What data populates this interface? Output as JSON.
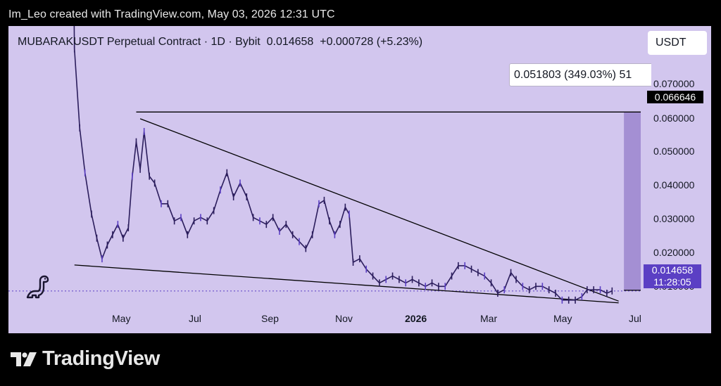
{
  "caption": "Im_Leo created with TradingView.com, May 03, 2026 12:31 UTC",
  "header": {
    "symbol": "MUBARAKUSDT Perpetual Contract · 1D · Bybit",
    "price": "0.014658",
    "change": "+0.000728 (+5.23%)"
  },
  "currency_button": "USDT",
  "tooltip": "0.051803 (349.03%) 51",
  "price_axis": {
    "labels": [
      "0.070000",
      "0.060000",
      "0.050000",
      "0.040000",
      "0.030000",
      "0.020000",
      "0.010000"
    ],
    "target_label": "0.066646",
    "current_price_label": "0.014658",
    "countdown": "11:28:05"
  },
  "time_axis": {
    "labels": [
      "May",
      "Jul",
      "Sep",
      "Nov",
      "2026",
      "Mar",
      "May",
      "Jul"
    ],
    "bold_label": "2026"
  },
  "footer": {
    "brand": "TradingView"
  },
  "colors": {
    "chart_bg": "#d2c6ee",
    "candle": "#2b1d5c",
    "candle_accent": "#5b3fc4",
    "projection_fill": "#a48fd3",
    "page_bg": "#000000"
  },
  "chart_data": {
    "type": "line",
    "title": "MUBARAKUSDT Perpetual Contract · 1D · Bybit",
    "ylim": [
      0.004,
      0.09
    ],
    "yticks": [
      0.07,
      0.06,
      0.05,
      0.04,
      0.03,
      0.02,
      0.01
    ],
    "x_start": "2025-03-18",
    "x_end": "2026-07-12",
    "series": [
      {
        "values": [
          [
            "2025-03-18",
            0.16
          ],
          [
            "2025-03-20",
            0.085
          ],
          [
            "2025-03-24",
            0.062
          ],
          [
            "2025-03-28",
            0.049
          ],
          [
            "2025-04-02",
            0.037
          ],
          [
            "2025-04-06",
            0.03
          ],
          [
            "2025-04-10",
            0.024
          ],
          [
            "2025-04-14",
            0.028
          ],
          [
            "2025-04-18",
            0.031
          ],
          [
            "2025-04-22",
            0.034
          ],
          [
            "2025-04-26",
            0.03
          ],
          [
            "2025-04-30",
            0.033
          ],
          [
            "2025-05-03",
            0.048
          ],
          [
            "2025-05-06",
            0.058
          ],
          [
            "2025-05-09",
            0.05
          ],
          [
            "2025-05-12",
            0.061
          ],
          [
            "2025-05-16",
            0.048
          ],
          [
            "2025-05-20",
            0.046
          ],
          [
            "2025-05-25",
            0.04
          ],
          [
            "2025-05-30",
            0.04
          ],
          [
            "2025-06-04",
            0.035
          ],
          [
            "2025-06-09",
            0.036
          ],
          [
            "2025-06-14",
            0.031
          ],
          [
            "2025-06-19",
            0.035
          ],
          [
            "2025-06-24",
            0.036
          ],
          [
            "2025-06-29",
            0.035
          ],
          [
            "2025-07-04",
            0.038
          ],
          [
            "2025-07-09",
            0.044
          ],
          [
            "2025-07-14",
            0.049
          ],
          [
            "2025-07-19",
            0.042
          ],
          [
            "2025-07-24",
            0.046
          ],
          [
            "2025-07-29",
            0.042
          ],
          [
            "2025-08-03",
            0.036
          ],
          [
            "2025-08-08",
            0.035
          ],
          [
            "2025-08-13",
            0.034
          ],
          [
            "2025-08-18",
            0.036
          ],
          [
            "2025-08-23",
            0.032
          ],
          [
            "2025-08-28",
            0.034
          ],
          [
            "2025-09-02",
            0.031
          ],
          [
            "2025-09-07",
            0.029
          ],
          [
            "2025-09-12",
            0.027
          ],
          [
            "2025-09-17",
            0.031
          ],
          [
            "2025-09-22",
            0.04
          ],
          [
            "2025-09-26",
            0.041
          ],
          [
            "2025-09-30",
            0.035
          ],
          [
            "2025-10-04",
            0.031
          ],
          [
            "2025-10-08",
            0.034
          ],
          [
            "2025-10-12",
            0.039
          ],
          [
            "2025-10-15",
            0.037
          ],
          [
            "2025-10-18",
            0.023
          ],
          [
            "2025-10-23",
            0.024
          ],
          [
            "2025-10-28",
            0.021
          ],
          [
            "2025-11-02",
            0.019
          ],
          [
            "2025-11-07",
            0.017
          ],
          [
            "2025-11-12",
            0.018
          ],
          [
            "2025-11-17",
            0.019
          ],
          [
            "2025-11-22",
            0.018
          ],
          [
            "2025-11-27",
            0.017
          ],
          [
            "2025-12-02",
            0.018
          ],
          [
            "2025-12-07",
            0.017
          ],
          [
            "2025-12-12",
            0.016
          ],
          [
            "2025-12-17",
            0.017
          ],
          [
            "2025-12-22",
            0.016
          ],
          [
            "2025-12-27",
            0.016
          ],
          [
            "2026-01-01",
            0.019
          ],
          [
            "2026-01-06",
            0.022
          ],
          [
            "2026-01-11",
            0.022
          ],
          [
            "2026-01-16",
            0.021
          ],
          [
            "2026-01-21",
            0.02
          ],
          [
            "2026-01-26",
            0.019
          ],
          [
            "2026-01-31",
            0.017
          ],
          [
            "2026-02-05",
            0.014
          ],
          [
            "2026-02-10",
            0.015
          ],
          [
            "2026-02-15",
            0.02
          ],
          [
            "2026-02-19",
            0.018
          ],
          [
            "2026-02-24",
            0.016
          ],
          [
            "2026-03-01",
            0.015
          ],
          [
            "2026-03-06",
            0.016
          ],
          [
            "2026-03-11",
            0.016
          ],
          [
            "2026-03-16",
            0.015
          ],
          [
            "2026-03-21",
            0.014
          ],
          [
            "2026-03-26",
            0.012
          ],
          [
            "2026-03-31",
            0.012
          ],
          [
            "2026-04-05",
            0.012
          ],
          [
            "2026-04-10",
            0.013
          ],
          [
            "2026-04-14",
            0.015
          ],
          [
            "2026-04-19",
            0.015
          ],
          [
            "2026-04-24",
            0.015
          ],
          [
            "2026-04-29",
            0.014
          ],
          [
            "2026-05-03",
            0.014658
          ]
        ]
      }
    ],
    "trendlines": [
      {
        "from": [
          "2025-03-20",
          0.0222
        ],
        "to": [
          "2026-05-08",
          0.0112
        ]
      },
      {
        "from": [
          "2025-05-09",
          0.0647
        ],
        "to": [
          "2026-05-08",
          0.0117
        ]
      }
    ],
    "horizontal_line": {
      "from": "2025-05-06",
      "to": "2026-07-12",
      "value": 0.066646
    },
    "current_price_line": 0.014658,
    "projection": {
      "start_date": "2026-05-12",
      "end_date": "2026-06-14",
      "from": 0.014845,
      "to": 0.066646
    }
  }
}
